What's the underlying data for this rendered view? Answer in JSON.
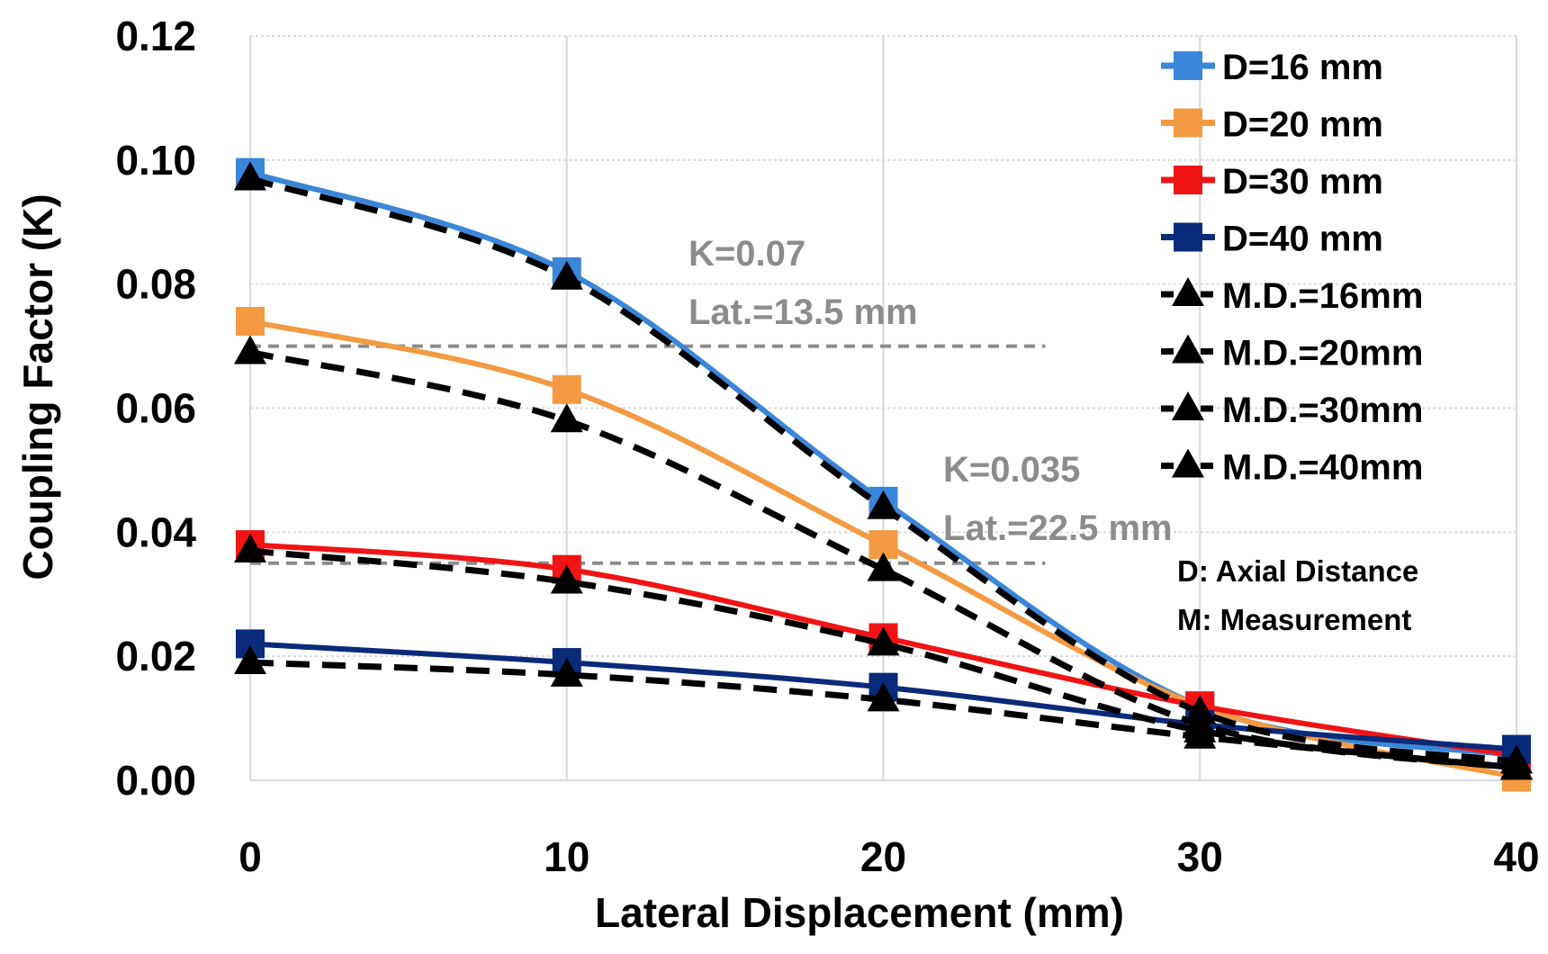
{
  "chart_data": {
    "type": "line",
    "title": "",
    "xlabel": "Lateral Displacement (mm)",
    "ylabel": "Coupling Factor (K)",
    "x": [
      0,
      10,
      20,
      30,
      40
    ],
    "xlim": [
      0,
      40
    ],
    "ylim": [
      0,
      0.12
    ],
    "x_ticks": [
      "0",
      "10",
      "20",
      "30",
      "40"
    ],
    "y_ticks": [
      "0.00",
      "0.02",
      "0.04",
      "0.06",
      "0.08",
      "0.10",
      "0.12"
    ],
    "grid": true,
    "legend_position": "top-right",
    "series": [
      {
        "name": "D=16 mm",
        "values": [
          0.098,
          0.082,
          0.045,
          0.012,
          0.004
        ],
        "color": "#3a86d8",
        "marker": "square",
        "line": "solid"
      },
      {
        "name": "D=20 mm",
        "values": [
          0.074,
          0.063,
          0.038,
          0.012,
          0.0005
        ],
        "color": "#f39a42",
        "marker": "square",
        "line": "solid"
      },
      {
        "name": "D=30 mm",
        "values": [
          0.038,
          0.034,
          0.023,
          0.012,
          0.004
        ],
        "color": "#f01414",
        "marker": "square",
        "line": "solid"
      },
      {
        "name": "D=40 mm",
        "values": [
          0.022,
          0.019,
          0.015,
          0.009,
          0.005
        ],
        "color": "#0a2a7a",
        "marker": "square",
        "line": "solid"
      },
      {
        "name": "M.D.=16mm",
        "values": [
          0.097,
          0.081,
          0.044,
          0.011,
          0.003
        ],
        "color": "#000000",
        "marker": "triangle",
        "line": "dashed"
      },
      {
        "name": "M.D.=20mm",
        "values": [
          0.069,
          0.058,
          0.034,
          0.009,
          0.002
        ],
        "color": "#000000",
        "marker": "triangle",
        "line": "dashed"
      },
      {
        "name": "M.D.=30mm",
        "values": [
          0.037,
          0.032,
          0.022,
          0.008,
          0.002
        ],
        "color": "#000000",
        "marker": "triangle",
        "line": "dashed"
      },
      {
        "name": "M.D.=40mm",
        "values": [
          0.019,
          0.017,
          0.013,
          0.007,
          0.002
        ],
        "color": "#000000",
        "marker": "triangle",
        "line": "dashed"
      }
    ],
    "reference_lines": [
      {
        "k": 0.07,
        "x_end": 25,
        "label_k": "K=0.07",
        "label_lat": "Lat.=13.5 mm"
      },
      {
        "k": 0.035,
        "x_end": 25,
        "label_k": "K=0.035",
        "label_lat": "Lat.=22.5 mm"
      }
    ],
    "notes": [
      "D: Axial Distance",
      "M: Measurement"
    ]
  }
}
